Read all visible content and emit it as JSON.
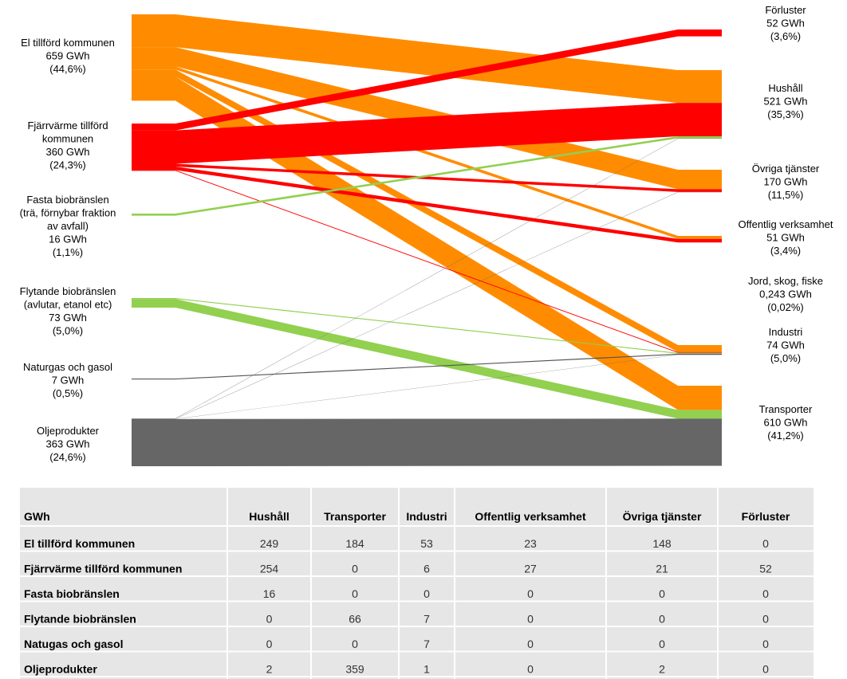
{
  "sankey": {
    "sources": [
      {
        "lines": [
          "El tillförd kommunen",
          "659 GWh",
          "(44,6%)"
        ],
        "color": "#ff8c00"
      },
      {
        "lines": [
          "Fjärrvärme tillförd",
          "kommunen",
          "360 GWh",
          "(24,3%)"
        ],
        "color": "#ff0000"
      },
      {
        "lines": [
          "Fasta biobränslen",
          "(trä, förnybar fraktion",
          "av avfall)",
          "16 GWh",
          "(1,1%)"
        ],
        "color": "#92d050"
      },
      {
        "lines": [
          "Flytande biobränslen",
          "(avlutar, etanol etc)",
          "73 GWh",
          "(5,0%)"
        ],
        "color": "#92d050"
      },
      {
        "lines": [
          "Naturgas och gasol",
          "7 GWh",
          "(0,5%)"
        ],
        "color": "#555555"
      },
      {
        "lines": [
          "Oljeprodukter",
          "363 GWh",
          "(24,6%)"
        ],
        "color": "#666666"
      }
    ],
    "targets": [
      {
        "lines": [
          "Förluster",
          "52 GWh",
          "(3,6%)"
        ]
      },
      {
        "lines": [
          "Hushåll",
          "521 GWh",
          "(35,3%)"
        ]
      },
      {
        "lines": [
          "Övriga tjänster",
          "170 GWh",
          "(11,5%)"
        ]
      },
      {
        "lines": [
          "Offentlig verksamhet",
          "51 GWh",
          "(3,4%)"
        ]
      },
      {
        "lines": [
          "Jord, skog, fiske",
          "0,243 GWh",
          "(0,02%)"
        ]
      },
      {
        "lines": [
          "Industri",
          "74 GWh",
          "(5,0%)"
        ]
      },
      {
        "lines": [
          "Transporter",
          "610 GWh",
          "(41,2%)"
        ]
      }
    ]
  },
  "table": {
    "header": [
      "GWh",
      "Hushåll",
      "Transporter",
      "Industri",
      "Offentlig verksamhet",
      "Övriga tjänster",
      "Förluster"
    ],
    "rows": [
      {
        "label": "El tillförd kommunen",
        "values": [
          249,
          184,
          53,
          23,
          148,
          0
        ]
      },
      {
        "label": "Fjärrvärme tillförd kommunen",
        "values": [
          254,
          0,
          6,
          27,
          21,
          52
        ]
      },
      {
        "label": "Fasta biobränslen",
        "values": [
          16,
          0,
          0,
          0,
          0,
          0
        ]
      },
      {
        "label": "Flytande biobränslen",
        "values": [
          0,
          66,
          7,
          0,
          0,
          0
        ]
      },
      {
        "label": "Natugas och gasol",
        "values": [
          0,
          0,
          7,
          0,
          0,
          0
        ]
      },
      {
        "label": "Oljeprodukter",
        "values": [
          2,
          359,
          1,
          0,
          2,
          0
        ]
      }
    ]
  }
}
